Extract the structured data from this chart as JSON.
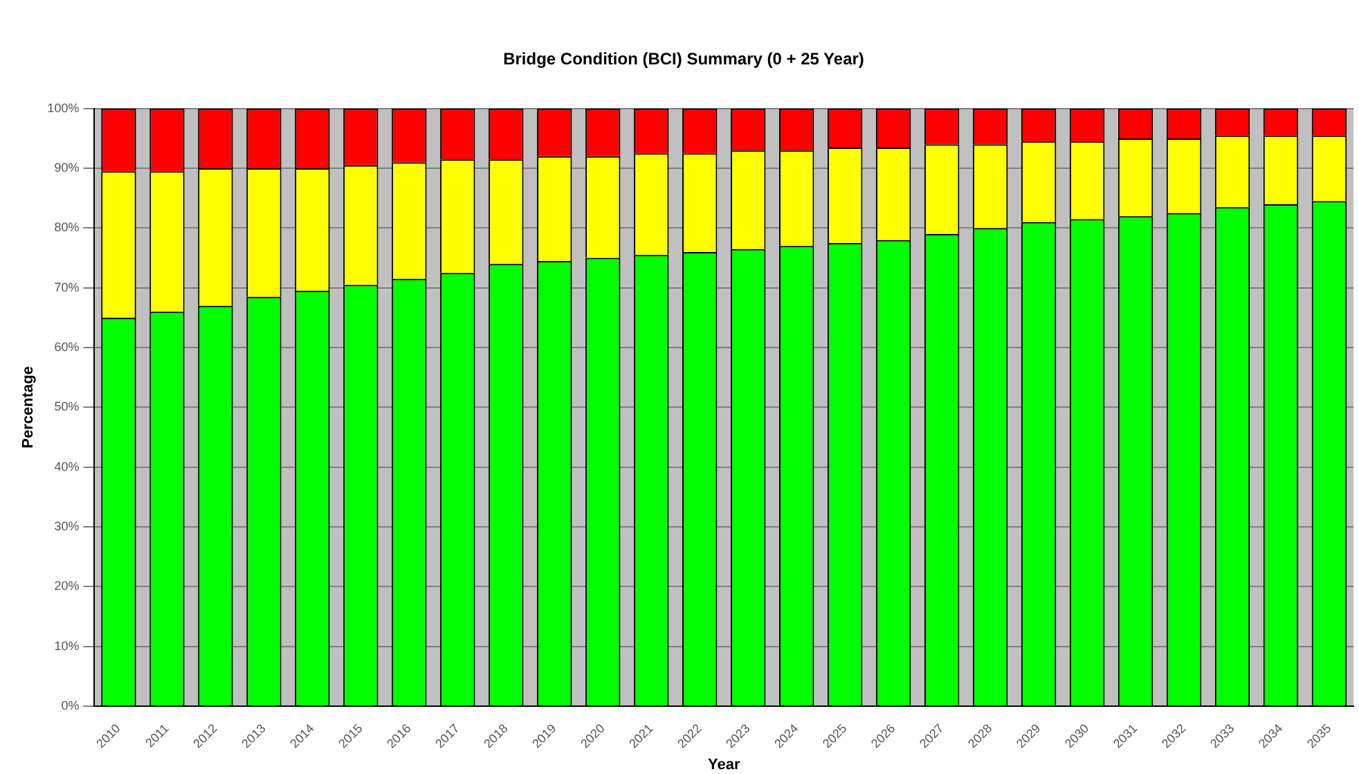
{
  "chart_data": {
    "type": "bar",
    "stacked": true,
    "title": "Bridge Condition (BCI) Summary (0 + 25 Year)",
    "xlabel": "Year",
    "ylabel": "Percentage",
    "categories": [
      "2010",
      "2011",
      "2012",
      "2013",
      "2014",
      "2015",
      "2016",
      "2017",
      "2018",
      "2019",
      "2020",
      "2021",
      "2022",
      "2023",
      "2024",
      "2025",
      "2026",
      "2027",
      "2028",
      "2029",
      "2030",
      "2031",
      "2032",
      "2033",
      "2034",
      "2035"
    ],
    "series": [
      {
        "color": "#00ff00",
        "values": [
          65,
          66,
          67,
          68.5,
          69.5,
          70.5,
          71.5,
          72.5,
          74,
          74.5,
          75,
          75.5,
          76,
          76.5,
          77,
          77.5,
          78,
          79,
          80,
          81,
          81.5,
          82,
          82.5,
          83.5,
          84,
          84.5
        ]
      },
      {
        "color": "#ffff00",
        "values": [
          24.5,
          23.5,
          23,
          21.5,
          20.5,
          20,
          19.5,
          19,
          17.5,
          17.5,
          17,
          17,
          16.5,
          16.5,
          16,
          16,
          15.5,
          15,
          14,
          13.5,
          13,
          13,
          12.5,
          12,
          11.5,
          11
        ]
      },
      {
        "color": "#ff0000",
        "values": [
          10.5,
          10.5,
          10,
          10,
          10,
          9.5,
          9,
          8.5,
          8.5,
          8,
          8,
          7.5,
          7.5,
          7,
          7,
          6.5,
          6.5,
          6,
          6,
          5.5,
          5.5,
          5,
          5,
          4.5,
          4.5,
          4.5
        ]
      }
    ],
    "ylim": [
      0,
      100
    ],
    "yticks": [
      {
        "value": 0,
        "label": "0%"
      },
      {
        "value": 10,
        "label": "10%"
      },
      {
        "value": 20,
        "label": "20%"
      },
      {
        "value": 30,
        "label": "30%"
      },
      {
        "value": 40,
        "label": "40%"
      },
      {
        "value": 50,
        "label": "50%"
      },
      {
        "value": 60,
        "label": "60%"
      },
      {
        "value": 70,
        "label": "70%"
      },
      {
        "value": 80,
        "label": "80%"
      },
      {
        "value": 90,
        "label": "90%"
      },
      {
        "value": 100,
        "label": "100%"
      }
    ],
    "grid": "y",
    "legend": false
  }
}
